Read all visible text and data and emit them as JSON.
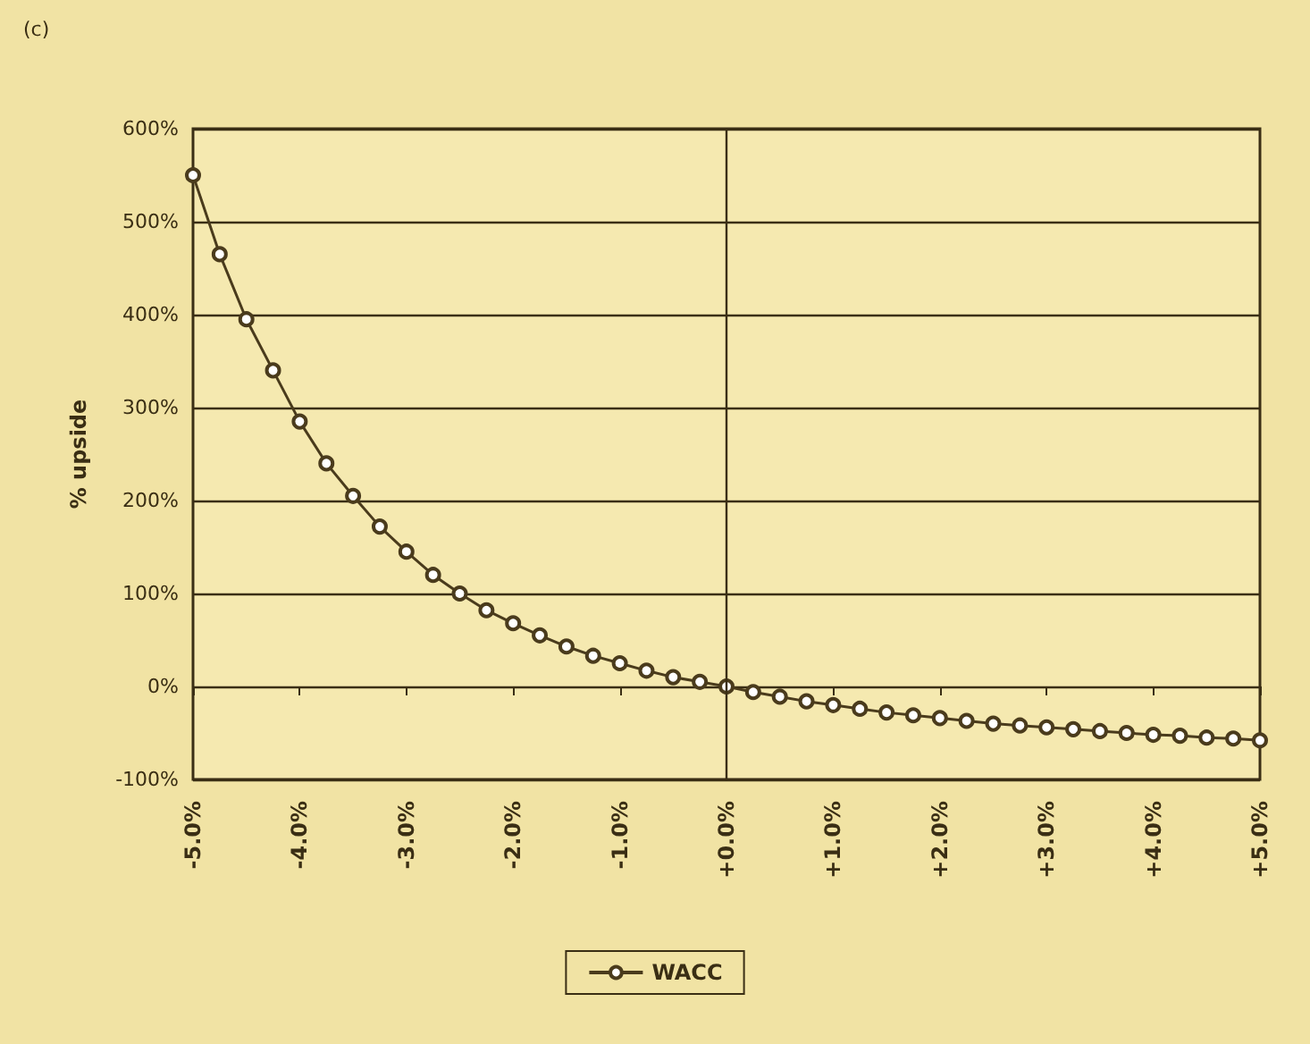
{
  "chart_data": {
    "type": "line",
    "title": "(c)",
    "ylabel": "% upside",
    "x": [
      -5,
      -4.75,
      -4.5,
      -4.25,
      -4,
      -3.75,
      -3.5,
      -3.25,
      -3,
      -2.75,
      -2.5,
      -2.25,
      -2,
      -1.75,
      -1.5,
      -1.25,
      -1,
      -0.75,
      -0.5,
      -0.25,
      0,
      0.25,
      0.5,
      0.75,
      1,
      1.25,
      1.5,
      1.75,
      2,
      2.25,
      2.5,
      2.75,
      3,
      3.25,
      3.5,
      3.75,
      4,
      4.25,
      4.5,
      4.75,
      5
    ],
    "series": [
      {
        "name": "WACC",
        "color": "#4a3b1c",
        "values": [
          550,
          465,
          395,
          340,
          285,
          240,
          205,
          172,
          145,
          120,
          100,
          82,
          68,
          55,
          43,
          33,
          25,
          17,
          10,
          5,
          0,
          -6,
          -11,
          -16,
          -20,
          -24,
          -28,
          -31,
          -34,
          -37,
          -40,
          -42,
          -44,
          -46,
          -48,
          -50,
          -52,
          -53,
          -55,
          -56,
          -58
        ]
      }
    ],
    "xlim": [
      -5,
      5
    ],
    "xticks": [
      {
        "value": -5,
        "label": "-5.0%"
      },
      {
        "value": -4,
        "label": "-4.0%"
      },
      {
        "value": -3,
        "label": "-3.0%"
      },
      {
        "value": -2,
        "label": "-2.0%"
      },
      {
        "value": -1,
        "label": "-1.0%"
      },
      {
        "value": 0,
        "label": "+0.0%"
      },
      {
        "value": 1,
        "label": "+1.0%"
      },
      {
        "value": 2,
        "label": "+2.0%"
      },
      {
        "value": 3,
        "label": "+3.0%"
      },
      {
        "value": 4,
        "label": "+4.0%"
      },
      {
        "value": 5,
        "label": "+5.0%"
      }
    ],
    "ylim": [
      -100,
      600
    ],
    "yticks": [
      {
        "value": -100,
        "label": "-100%"
      },
      {
        "value": 0,
        "label": "0%"
      },
      {
        "value": 100,
        "label": "100%"
      },
      {
        "value": 200,
        "label": "200%"
      },
      {
        "value": 300,
        "label": "300%"
      },
      {
        "value": 400,
        "label": "400%"
      },
      {
        "value": 500,
        "label": "500%"
      },
      {
        "value": 600,
        "label": "600%"
      }
    ],
    "ref_lines": [
      {
        "axis": "x",
        "value": 0,
        "color": "#3a2e14"
      }
    ],
    "grid": "y",
    "legend": "bottom",
    "marker": "circle",
    "line_style": "solid"
  }
}
